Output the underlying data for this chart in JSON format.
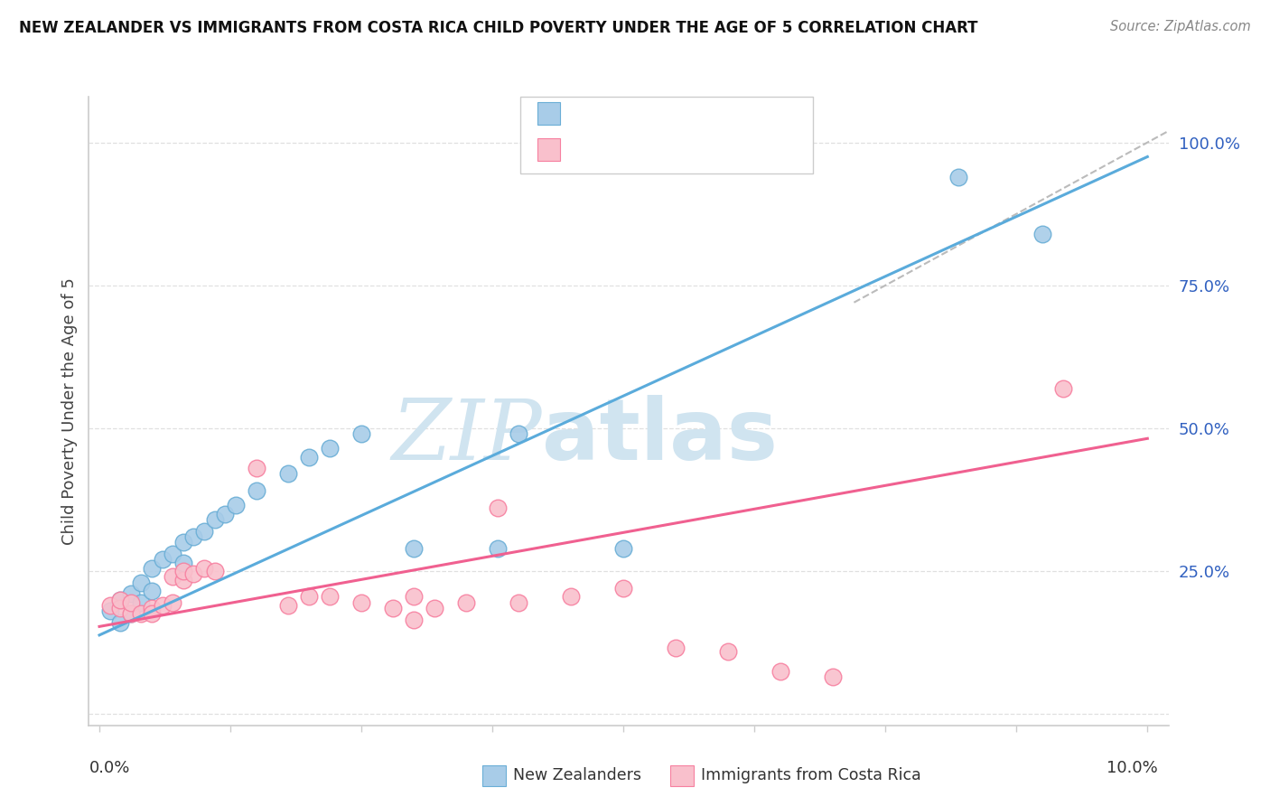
{
  "title": "NEW ZEALANDER VS IMMIGRANTS FROM COSTA RICA CHILD POVERTY UNDER THE AGE OF 5 CORRELATION CHART",
  "source": "Source: ZipAtlas.com",
  "ylabel": "Child Poverty Under the Age of 5",
  "ytick_values": [
    0.0,
    0.25,
    0.5,
    0.75,
    1.0
  ],
  "ytick_right_labels": [
    "",
    "25.0%",
    "50.0%",
    "75.0%",
    "100.0%"
  ],
  "xlim": [
    -0.001,
    0.102
  ],
  "ylim": [
    -0.02,
    1.08
  ],
  "legend_label1": "New Zealanders",
  "legend_label2": "Immigrants from Costa Rica",
  "blue_color": "#a8cce8",
  "pink_color": "#f9c0cc",
  "blue_edge": "#6aaed6",
  "pink_edge": "#f780a0",
  "trend_blue": "#5aabdb",
  "trend_pink": "#f06090",
  "value_color": "#3060c0",
  "blue_scatter_x": [
    0.001,
    0.002,
    0.002,
    0.003,
    0.003,
    0.004,
    0.004,
    0.005,
    0.005,
    0.006,
    0.007,
    0.008,
    0.008,
    0.009,
    0.01,
    0.011,
    0.012,
    0.013,
    0.015,
    0.018,
    0.02,
    0.022,
    0.025,
    0.03,
    0.038,
    0.04,
    0.05,
    0.082,
    0.09
  ],
  "blue_scatter_y": [
    0.18,
    0.16,
    0.2,
    0.175,
    0.21,
    0.195,
    0.23,
    0.215,
    0.255,
    0.27,
    0.28,
    0.3,
    0.265,
    0.31,
    0.32,
    0.34,
    0.35,
    0.365,
    0.39,
    0.42,
    0.45,
    0.465,
    0.49,
    0.29,
    0.29,
    0.49,
    0.29,
    0.94,
    0.84
  ],
  "pink_scatter_x": [
    0.001,
    0.002,
    0.002,
    0.003,
    0.003,
    0.004,
    0.005,
    0.005,
    0.006,
    0.007,
    0.007,
    0.008,
    0.008,
    0.009,
    0.01,
    0.011,
    0.015,
    0.018,
    0.02,
    0.022,
    0.025,
    0.028,
    0.03,
    0.03,
    0.032,
    0.035,
    0.038,
    0.04,
    0.045,
    0.05,
    0.055,
    0.06,
    0.065,
    0.092,
    0.07
  ],
  "pink_scatter_y": [
    0.19,
    0.185,
    0.2,
    0.175,
    0.195,
    0.175,
    0.185,
    0.175,
    0.19,
    0.195,
    0.24,
    0.235,
    0.25,
    0.245,
    0.255,
    0.25,
    0.43,
    0.19,
    0.205,
    0.205,
    0.195,
    0.185,
    0.205,
    0.165,
    0.185,
    0.195,
    0.36,
    0.195,
    0.205,
    0.22,
    0.115,
    0.11,
    0.075,
    0.57,
    0.065
  ],
  "blue_trend_x": [
    0.0,
    0.1
  ],
  "blue_trend_y": [
    0.138,
    0.975
  ],
  "pink_trend_x": [
    0.0,
    0.1
  ],
  "pink_trend_y": [
    0.153,
    0.482
  ],
  "ref_line_x": [
    0.072,
    0.102
  ],
  "ref_line_y": [
    0.72,
    1.02
  ],
  "watermark_zi": "ZIP",
  "watermark_atlas": "atlas",
  "watermark_color": "#d0e4f0",
  "background_color": "#ffffff",
  "grid_color": "#e0e0e0",
  "axis_color": "#cccccc"
}
